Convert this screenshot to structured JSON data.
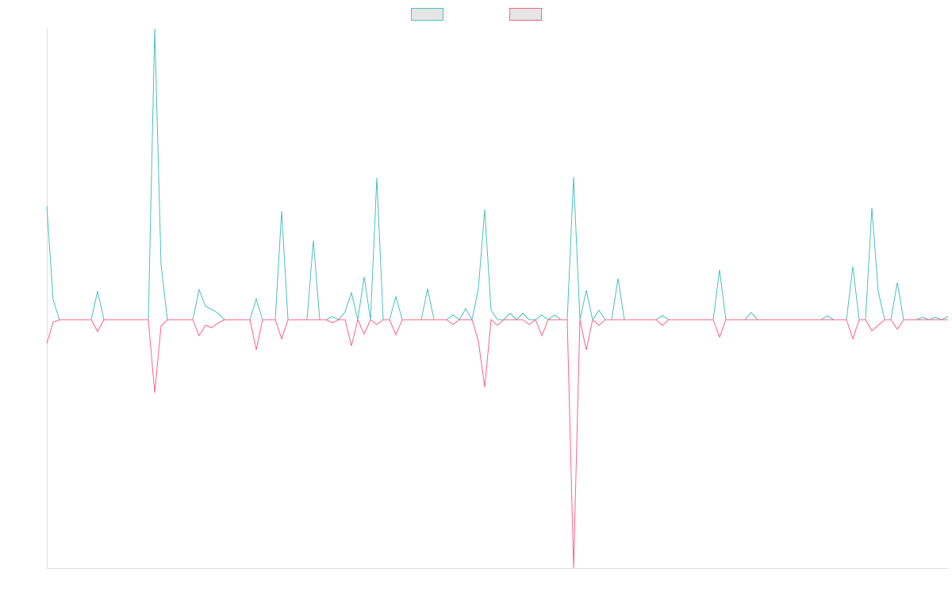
{
  "chart_data": {
    "type": "line",
    "ylim": [
      -313,
      367
    ],
    "legend": "top",
    "series": [
      {
        "color": "#4bc0c0",
        "values": [
          143,
          25,
          0,
          0,
          0,
          0,
          0,
          0,
          36,
          0,
          0,
          0,
          0,
          0,
          0,
          0,
          0,
          367,
          70,
          0,
          0,
          0,
          0,
          0,
          38,
          17,
          13,
          8,
          0,
          0,
          0,
          0,
          0,
          26,
          0,
          0,
          0,
          137,
          0,
          0,
          0,
          0,
          100,
          0,
          0,
          4,
          0,
          10,
          34,
          0,
          54,
          0,
          179,
          0,
          0,
          29,
          0,
          0,
          0,
          0,
          39,
          0,
          0,
          0,
          6,
          0,
          14,
          0,
          39,
          139,
          12,
          0,
          0,
          8,
          0,
          8,
          0,
          0,
          6,
          0,
          6,
          0,
          0,
          180,
          0,
          37,
          0,
          12,
          0,
          0,
          52,
          0,
          0,
          0,
          0,
          0,
          0,
          5,
          0,
          0,
          0,
          0,
          0,
          0,
          0,
          0,
          63,
          0,
          0,
          0,
          0,
          9,
          0,
          0,
          0,
          0,
          0,
          0,
          0,
          0,
          0,
          0,
          0,
          5,
          0,
          0,
          0,
          67,
          0,
          0,
          141,
          36,
          0,
          0,
          47,
          0,
          0,
          0,
          3,
          0,
          3,
          0,
          4
        ]
      },
      {
        "color": "#ff6384",
        "values": [
          -30,
          -3,
          0,
          0,
          0,
          0,
          0,
          0,
          -15,
          0,
          0,
          0,
          0,
          0,
          0,
          0,
          0,
          -92,
          -8,
          0,
          0,
          0,
          0,
          0,
          -20,
          -7,
          -10,
          -4,
          0,
          0,
          0,
          0,
          0,
          -38,
          0,
          0,
          0,
          -24,
          0,
          0,
          0,
          0,
          0,
          0,
          0,
          -4,
          0,
          0,
          -33,
          0,
          -18,
          0,
          -6,
          0,
          0,
          -19,
          0,
          0,
          0,
          0,
          0,
          0,
          0,
          0,
          -6,
          0,
          0,
          0,
          -27,
          -85,
          0,
          -7,
          0,
          0,
          0,
          0,
          -6,
          0,
          -20,
          0,
          0,
          0,
          0,
          -313,
          0,
          -38,
          0,
          -7,
          0,
          0,
          0,
          0,
          0,
          0,
          0,
          0,
          0,
          -7,
          0,
          0,
          0,
          0,
          0,
          0,
          0,
          0,
          -22,
          0,
          0,
          0,
          0,
          0,
          0,
          0,
          0,
          0,
          0,
          0,
          0,
          0,
          0,
          0,
          0,
          0,
          0,
          0,
          0,
          -24,
          0,
          0,
          -14,
          -7,
          0,
          0,
          -12,
          0,
          0,
          0,
          0,
          0,
          0,
          0,
          0
        ]
      }
    ]
  }
}
